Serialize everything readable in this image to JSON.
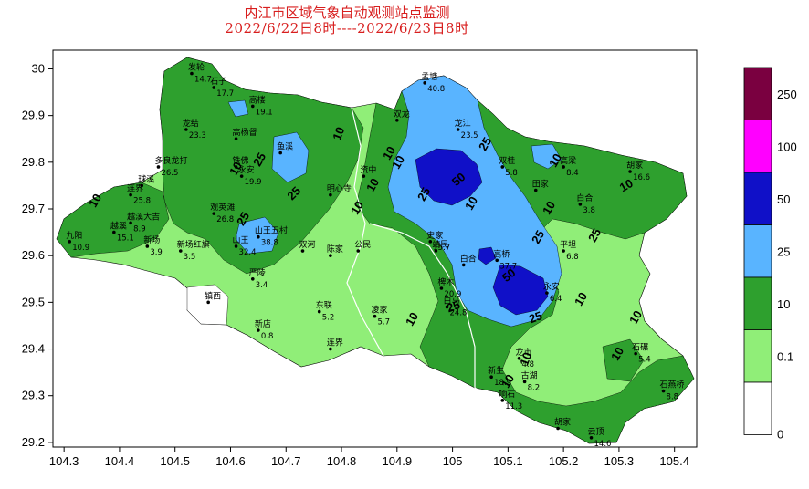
{
  "title": {
    "line1": "内江市区域气象自动观测站点监测",
    "line2": "2022/6/22日8时----2022/6/23日8时"
  },
  "axes": {
    "x_ticks": [
      "104.3",
      "104.4",
      "104.5",
      "104.6",
      "104.7",
      "104.8",
      "104.9",
      "105",
      "105.1",
      "105.2",
      "105.3",
      "105.4"
    ],
    "y_ticks": [
      "30",
      "29.9",
      "29.8",
      "29.7",
      "29.6",
      "29.5",
      "29.4",
      "29.3",
      "29.2"
    ],
    "x_range": [
      104.28,
      105.44
    ],
    "y_range": [
      29.19,
      30.04
    ]
  },
  "legend": {
    "labels": [
      "250",
      "100",
      "50",
      "25",
      "10",
      "0.1",
      "0"
    ],
    "colors": [
      "#7a0040",
      "#ff00ff",
      "#1010c8",
      "#59b4ff",
      "#2ea02e",
      "#90ee78",
      "#ffffff"
    ]
  },
  "contour_labels": [
    "10",
    "25",
    "10",
    "25",
    "25",
    "10",
    "10",
    "10",
    "25",
    "10",
    "25",
    "10",
    "25",
    "50",
    "25",
    "10",
    "25",
    "10",
    "50",
    "10",
    "10",
    "25",
    "10",
    "10",
    "10",
    "10",
    "10",
    "10"
  ],
  "stations": [
    {
      "name": "发轮",
      "value": "14.7",
      "lon": 104.53,
      "lat": 29.99
    },
    {
      "name": "石子",
      "value": "17.7",
      "lon": 104.57,
      "lat": 29.96
    },
    {
      "name": "高楼",
      "value": "19.1",
      "lon": 104.64,
      "lat": 29.92
    },
    {
      "name": "龙结",
      "value": "23.3",
      "lon": 104.52,
      "lat": 29.87
    },
    {
      "name": "高杨督",
      "value": "",
      "lon": 104.61,
      "lat": 29.85
    },
    {
      "name": "永安",
      "value": "19.9",
      "lon": 104.62,
      "lat": 29.77
    },
    {
      "name": "铁佛",
      "value": "",
      "lon": 104.61,
      "lat": 29.79
    },
    {
      "name": "鱼溪",
      "value": "",
      "lon": 104.69,
      "lat": 29.82
    },
    {
      "name": "多良龙打",
      "value": "26.5",
      "lon": 104.47,
      "lat": 29.79
    },
    {
      "name": "连界",
      "value": "25.8",
      "lon": 104.42,
      "lat": 29.73
    },
    {
      "name": "球溪",
      "value": "",
      "lon": 104.44,
      "lat": 29.75
    },
    {
      "name": "越溪",
      "value": "15.1",
      "lon": 104.39,
      "lat": 29.65
    },
    {
      "name": "越溪大吉",
      "value": "8.9",
      "lon": 104.42,
      "lat": 29.67
    },
    {
      "name": "九阳",
      "value": "10.9",
      "lon": 104.31,
      "lat": 29.63
    },
    {
      "name": "新场",
      "value": "3.9",
      "lon": 104.45,
      "lat": 29.62
    },
    {
      "name": "新场红旗",
      "value": "3.5",
      "lon": 104.51,
      "lat": 29.61
    },
    {
      "name": "观英滩",
      "value": "26.8",
      "lon": 104.57,
      "lat": 29.69
    },
    {
      "name": "山王",
      "value": "32.4",
      "lon": 104.61,
      "lat": 29.62
    },
    {
      "name": "山王五村",
      "value": "38.8",
      "lon": 104.65,
      "lat": 29.64
    },
    {
      "name": "双河",
      "value": "",
      "lon": 104.73,
      "lat": 29.61
    },
    {
      "name": "陈家",
      "value": "",
      "lon": 104.78,
      "lat": 29.6
    },
    {
      "name": "公民",
      "value": "",
      "lon": 104.83,
      "lat": 29.61
    },
    {
      "name": "资中",
      "value": "",
      "lon": 104.84,
      "lat": 29.77
    },
    {
      "name": "明心寺",
      "value": "",
      "lon": 104.78,
      "lat": 29.73
    },
    {
      "name": "孟塘",
      "value": "40.8",
      "lon": 104.95,
      "lat": 29.97
    },
    {
      "name": "龙江",
      "value": "23.5",
      "lon": 105.01,
      "lat": 29.87
    },
    {
      "name": "双龙",
      "value": "",
      "lon": 104.9,
      "lat": 29.89
    },
    {
      "name": "双桂",
      "value": "5.8",
      "lon": 105.09,
      "lat": 29.79
    },
    {
      "name": "田家",
      "value": "",
      "lon": 105.15,
      "lat": 29.74
    },
    {
      "name": "白合",
      "value": "3.8",
      "lon": 105.23,
      "lat": 29.71
    },
    {
      "name": "高梁",
      "value": "8.4",
      "lon": 105.2,
      "lat": 29.79
    },
    {
      "name": "胡家",
      "value": "16.6",
      "lon": 105.32,
      "lat": 29.78
    },
    {
      "name": "高桥",
      "value": "37.7",
      "lon": 105.08,
      "lat": 29.59
    },
    {
      "name": "平坦",
      "value": "6.8",
      "lon": 105.2,
      "lat": 29.61
    },
    {
      "name": "永安",
      "value": "6.4",
      "lon": 105.17,
      "lat": 29.52
    },
    {
      "name": "白马",
      "value": "24.8",
      "lon": 104.99,
      "lat": 29.49
    },
    {
      "name": "石碾",
      "value": "5.4",
      "lon": 105.33,
      "lat": 29.39
    },
    {
      "name": "龙市",
      "value": "4.8",
      "lon": 105.12,
      "lat": 29.38
    },
    {
      "name": "古湖",
      "value": "8.2",
      "lon": 105.13,
      "lat": 29.33
    },
    {
      "name": "镇西",
      "value": "",
      "lon": 104.56,
      "lat": 29.5
    },
    {
      "name": "严陵",
      "value": "3.4",
      "lon": 104.64,
      "lat": 29.55
    },
    {
      "name": "新店",
      "value": "0.8",
      "lon": 104.65,
      "lat": 29.44
    },
    {
      "name": "东联",
      "value": "5.2",
      "lon": 104.76,
      "lat": 29.48
    },
    {
      "name": "凌家",
      "value": "5.7",
      "lon": 104.86,
      "lat": 29.47
    },
    {
      "name": "连界",
      "value": "",
      "lon": 104.78,
      "lat": 29.4
    },
    {
      "name": "新生",
      "value": "18.9",
      "lon": 105.07,
      "lat": 29.34
    },
    {
      "name": "响石",
      "value": "11.3",
      "lon": 105.09,
      "lat": 29.29
    },
    {
      "name": "胡家",
      "value": "",
      "lon": 105.19,
      "lat": 29.23
    },
    {
      "name": "云顶",
      "value": "14.6",
      "lon": 105.25,
      "lat": 29.21
    },
    {
      "name": "石燕桥",
      "value": "8.8",
      "lon": 105.38,
      "lat": 29.31
    },
    {
      "name": "椑木",
      "value": "20.9",
      "lon": 104.98,
      "lat": 29.53
    },
    {
      "name": "史家",
      "value": "15.7",
      "lon": 104.96,
      "lat": 29.63
    },
    {
      "name": "靖民",
      "value": "",
      "lon": 104.97,
      "lat": 29.61
    },
    {
      "name": "白合",
      "value": "",
      "lon": 105.02,
      "lat": 29.58
    }
  ]
}
